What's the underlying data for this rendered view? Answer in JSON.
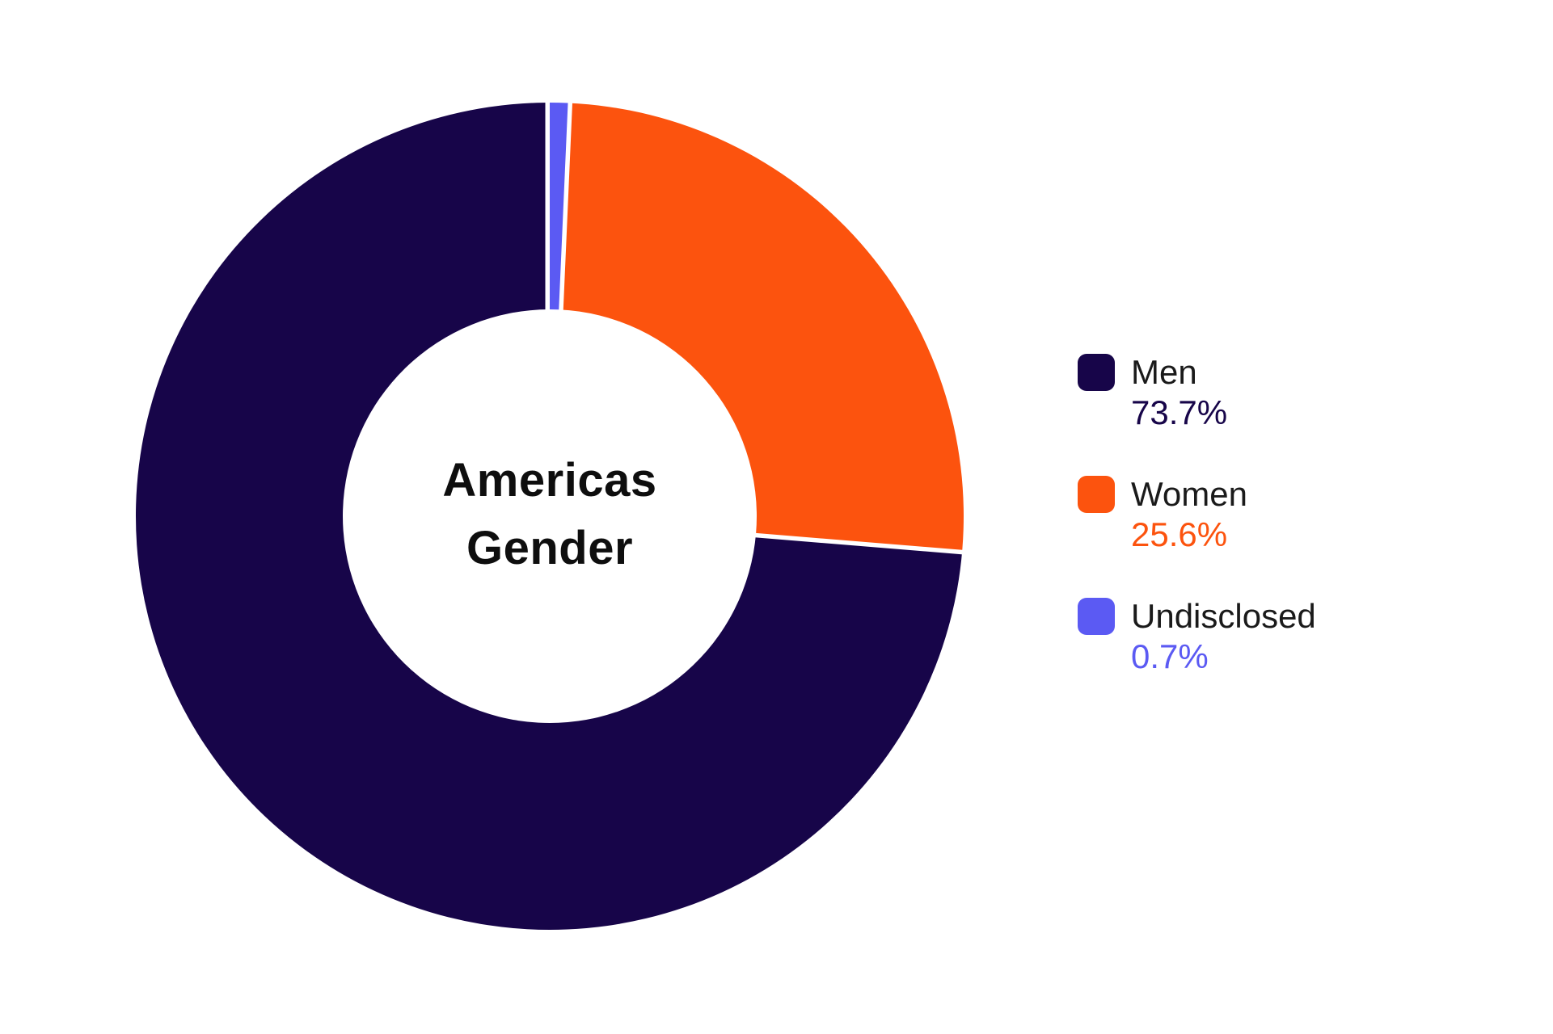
{
  "background_color": "#ffffff",
  "chart_data": {
    "type": "pie",
    "subtype": "donut",
    "title": "Americas Gender",
    "center_title_lines": [
      "Americas",
      "Gender"
    ],
    "legend_position": "right",
    "donut_hole_ratio": 0.5,
    "slice_border_color": "#ffffff",
    "slices": [
      {
        "label": "Men",
        "value": 73.7,
        "value_label": "73.7%",
        "color": "#170549"
      },
      {
        "label": "Women",
        "value": 25.6,
        "value_label": "25.6%",
        "color": "#fc530e"
      },
      {
        "label": "Undisclosed",
        "value": 0.7,
        "value_label": "0.7%",
        "color": "#5b5af3"
      }
    ]
  }
}
